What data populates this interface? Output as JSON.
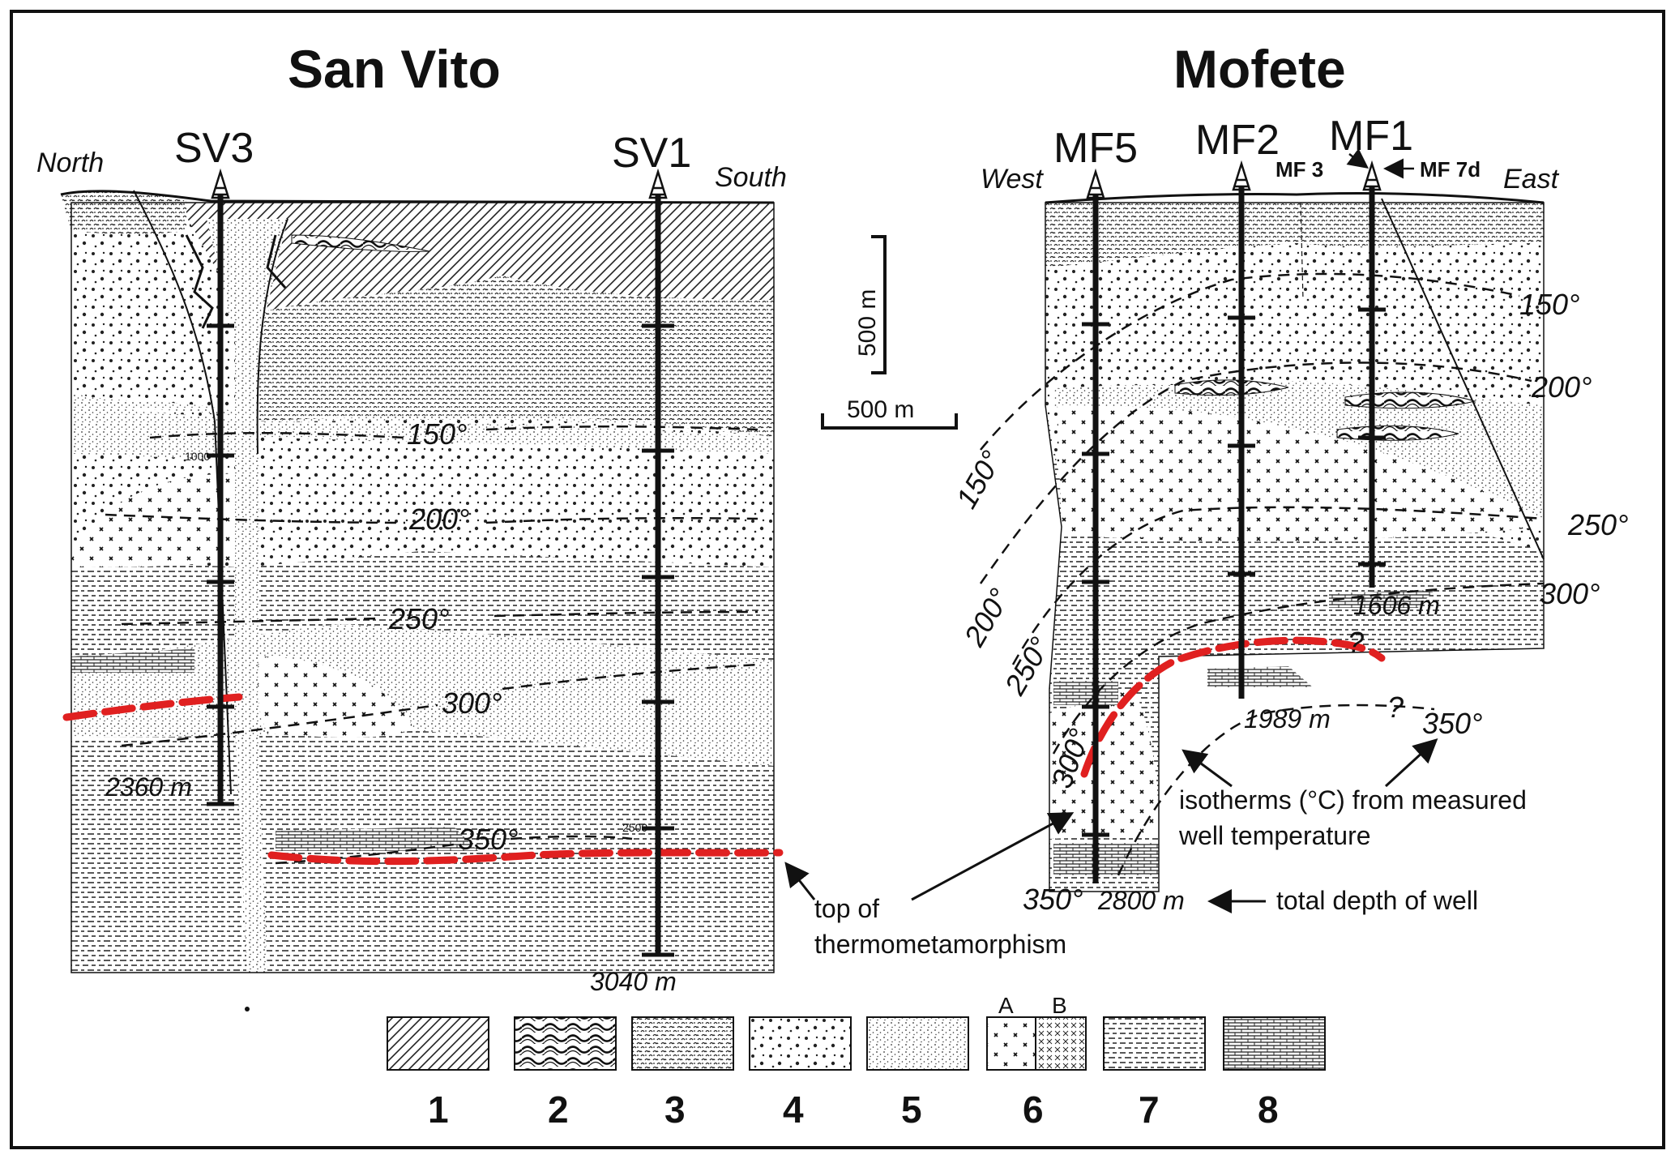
{
  "sections": {
    "san_vito": {
      "title": "San Vito",
      "north": "North",
      "south": "South",
      "wells": {
        "sv3": "SV3",
        "sv1": "SV1"
      },
      "depth_sv3": "2360 m",
      "depth_sv1": "3040 m",
      "mark_1000": "1000",
      "mark_2500": "2500",
      "isotherms": {
        "i150": "150°",
        "i200": "200°",
        "i250": "250°",
        "i300": "300°",
        "i350": "350°"
      }
    },
    "mofete": {
      "title": "Mofete",
      "west": "West",
      "east": "East",
      "wells": {
        "mf5": "MF5",
        "mf2": "MF2",
        "mf1": "MF1",
        "mf3": "MF 3",
        "mf7d": "MF 7d"
      },
      "depth_mf1": "1606 m",
      "depth_mf2": "1989 m",
      "depth_mf5": "2800 m",
      "isotherms_right": {
        "i150": "150°",
        "i200": "200°",
        "i250": "250°",
        "i300": "300°",
        "i350": "350°"
      },
      "isotherms_left": {
        "i150": "150°",
        "i200": "200°",
        "i250": "250°",
        "i300": "300°",
        "i350": "350°"
      },
      "question_1": "?",
      "question_2": "?"
    }
  },
  "scale_bars": {
    "vertical": "500 m",
    "horizontal": "500 m"
  },
  "annotations": {
    "isotherms_line1": "isotherms (°C) from measured",
    "isotherms_line2": "well temperature",
    "total_depth": "total depth of well",
    "thermo_line1": "top of",
    "thermo_line2": "thermometamorphism"
  },
  "legend": {
    "items": [
      "1",
      "2",
      "3",
      "4",
      "5",
      "6",
      "7",
      "8"
    ],
    "sub_a": "A",
    "sub_b": "B"
  },
  "colors": {
    "thermometamorphism": "#e02020",
    "ink": "#111111"
  }
}
